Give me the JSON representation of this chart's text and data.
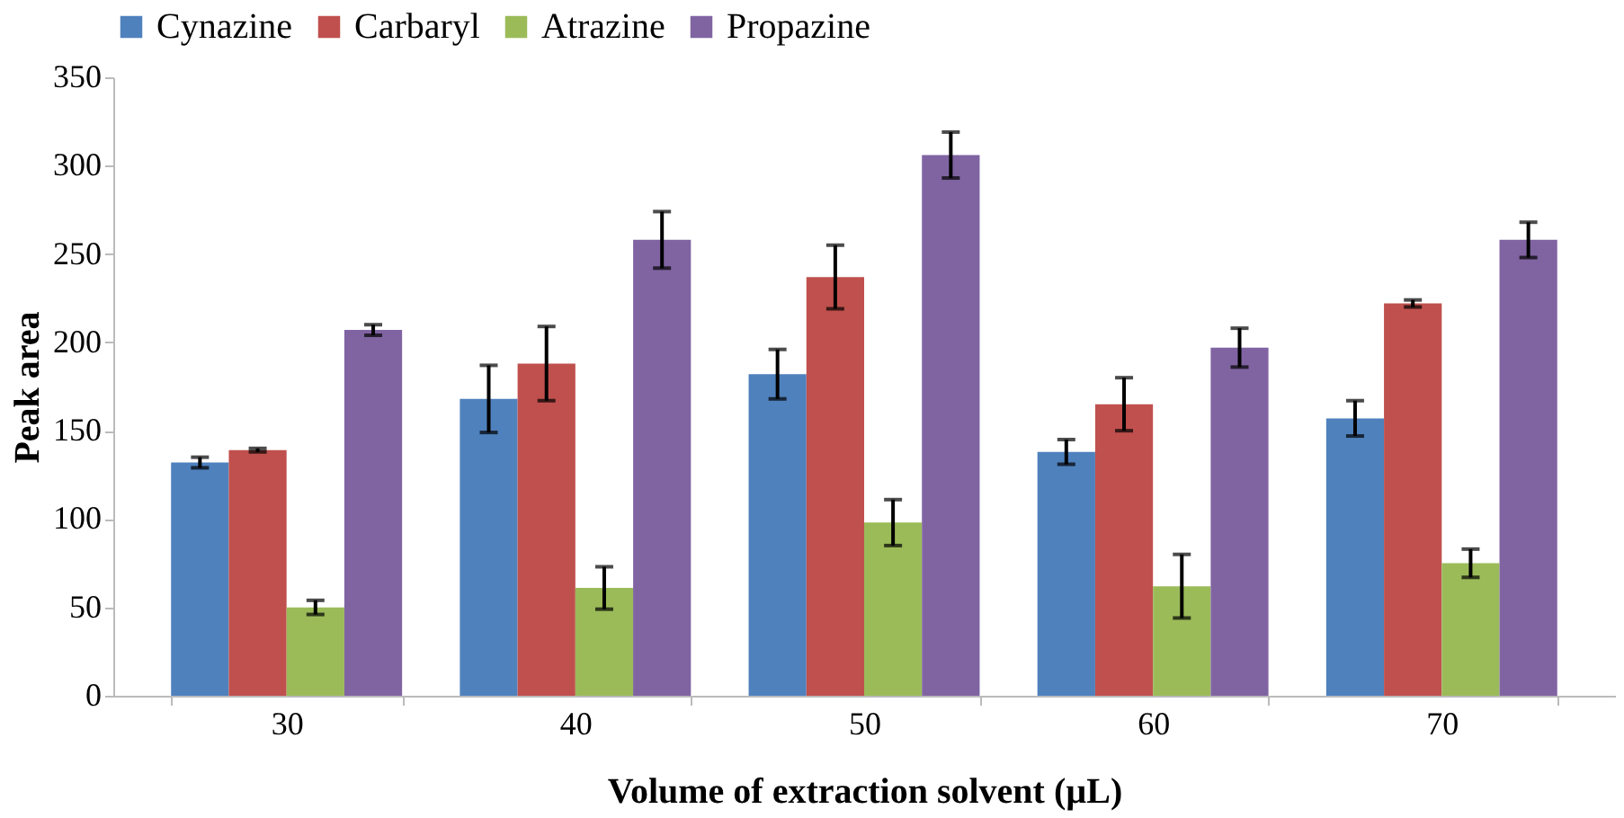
{
  "chart_data": {
    "type": "bar",
    "xlabel": "Volume of extraction solvent (µL)",
    "ylabel": "Peak area",
    "categories": [
      "30",
      "40",
      "50",
      "60",
      "70"
    ],
    "series": [
      {
        "name": "Cynazine",
        "color": "#4f81bd",
        "values": [
          132,
          168,
          182,
          138,
          157
        ],
        "errors": [
          3,
          19,
          14,
          7,
          10
        ]
      },
      {
        "name": "Carbaryl",
        "color": "#c0504d",
        "values": [
          139,
          188,
          237,
          165,
          222
        ],
        "errors": [
          1,
          21,
          18,
          15,
          2
        ]
      },
      {
        "name": "Atrazine",
        "color": "#9bbb59",
        "values": [
          50,
          61,
          98,
          62,
          75
        ],
        "errors": [
          4,
          12,
          13,
          18,
          8
        ]
      },
      {
        "name": "Propazine",
        "color": "#8064a2",
        "values": [
          207,
          258,
          306,
          197,
          258
        ],
        "errors": [
          3,
          16,
          13,
          11,
          10
        ]
      }
    ],
    "ylim": [
      0,
      350
    ],
    "yticks": [
      0,
      50,
      100,
      150,
      200,
      250,
      300,
      350
    ],
    "grid": false,
    "legend": "top"
  }
}
